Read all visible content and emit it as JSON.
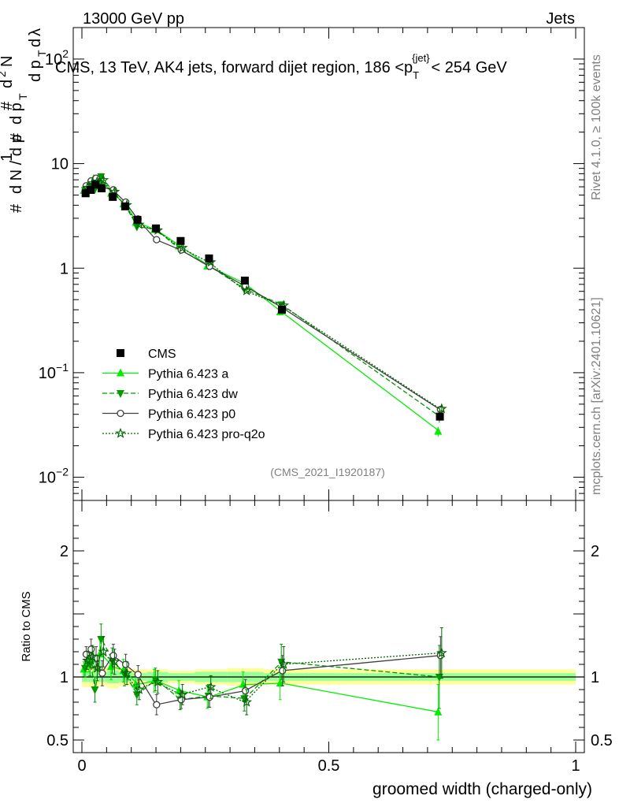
{
  "header": {
    "left": "13000 GeV pp",
    "right": "Jets",
    "title": "CMS, 13 TeV, AK4 jets, forward dijet region, 186 <p",
    "title_sup": "{jet}",
    "title_sub": "T",
    "title_end": "< 254 GeV",
    "side_top": "Rivet 4.1.0, ≥ 100k events",
    "side_bottom": "mcplots.cern.ch [arXiv:2401.10621]",
    "analysis_id": "(CMS_2021_I1920187)"
  },
  "chart_data": {
    "type": "scatter",
    "xlabel": "groomed width (charged-only)",
    "ylabel_main": "1/dN/dp_T dN/dp_T dλ",
    "ylabel_ratio": "Ratio to CMS",
    "xlim": [
      0,
      1
    ],
    "ylim_main_log": [
      0.006,
      200
    ],
    "ylim_ratio": [
      0.4,
      2.4
    ],
    "x_ticks": [
      {
        "v": 0,
        "label": "0"
      },
      {
        "v": 0.5,
        "label": "0.5"
      },
      {
        "v": 1,
        "label": "1"
      }
    ],
    "y_ticks_main": [
      {
        "v": 0.01,
        "base": "10",
        "exp": "−2"
      },
      {
        "v": 0.1,
        "base": "10",
        "exp": "−1"
      },
      {
        "v": 1,
        "base": "1",
        "exp": ""
      },
      {
        "v": 10,
        "base": "10",
        "exp": ""
      },
      {
        "v": 100,
        "base": "10",
        "exp": "2"
      }
    ],
    "y_ticks_ratio": [
      {
        "v": 0.5,
        "label": "0.5"
      },
      {
        "v": 1,
        "label": "1"
      },
      {
        "v": 2,
        "label": "2"
      }
    ],
    "x": [
      0.0075,
      0.0175,
      0.0275,
      0.04,
      0.0625,
      0.0875,
      0.1125,
      0.15,
      0.2,
      0.2575,
      0.33,
      0.405,
      0.725
    ],
    "cms": {
      "name": "CMS",
      "values": [
        5.2,
        5.6,
        6.3,
        5.8,
        4.8,
        3.9,
        2.9,
        2.4,
        1.82,
        1.24,
        0.76,
        0.4,
        0.038
      ],
      "band_inner": [
        0.04,
        0.04,
        0.04,
        0.04,
        0.05,
        0.04,
        0.03,
        0.04,
        0.03,
        0.04,
        0.04,
        0.03,
        0.03
      ],
      "band_outer": [
        0.08,
        0.08,
        0.09,
        0.07,
        0.09,
        0.07,
        0.06,
        0.06,
        0.05,
        0.06,
        0.07,
        0.06,
        0.06
      ]
    },
    "series": [
      {
        "name": "Pythia 6.423 a",
        "color": "#00ee00",
        "dash": "",
        "marker": "triangle-up",
        "ratio": [
          1.06,
          1.12,
          1.14,
          1.18,
          1.08,
          1.05,
          0.94,
          0.97,
          0.89,
          0.84,
          0.94,
          0.95,
          0.72
        ],
        "ratio_err": [
          0.06,
          0.08,
          0.1,
          0.12,
          0.1,
          0.09,
          0.08,
          0.09,
          0.08,
          0.09,
          0.1,
          0.13,
          0.22
        ]
      },
      {
        "name": "Pythia 6.423 dw",
        "color": "#009900",
        "dash": "6,3",
        "marker": "triangle-down",
        "ratio": [
          1.07,
          1.1,
          0.9,
          1.3,
          1.13,
          1.02,
          0.86,
          0.98,
          0.82,
          0.85,
          0.83,
          1.12,
          1.0
        ],
        "ratio_err": [
          0.07,
          0.09,
          0.1,
          0.12,
          0.1,
          0.09,
          0.08,
          0.09,
          0.08,
          0.09,
          0.1,
          0.14,
          0.25
        ]
      },
      {
        "name": "Pythia 6.423 p0",
        "color": "#404040",
        "dash": "",
        "marker": "circle-open",
        "ratio": [
          1.18,
          1.22,
          1.15,
          1.03,
          1.17,
          1.1,
          1.02,
          0.78,
          0.82,
          0.84,
          0.89,
          1.05,
          1.17
        ],
        "ratio_err": [
          0.06,
          0.08,
          0.09,
          0.1,
          0.09,
          0.08,
          0.07,
          0.08,
          0.07,
          0.08,
          0.09,
          0.12,
          0.15
        ]
      },
      {
        "name": "Pythia 6.423 pro-q2o",
        "color": "#006600",
        "dash": "2,2",
        "marker": "star-open",
        "ratio": [
          1.13,
          1.16,
          1.07,
          1.2,
          1.12,
          1.03,
          0.9,
          0.96,
          0.86,
          0.92,
          0.8,
          1.1,
          1.19
        ],
        "ratio_err": [
          0.07,
          0.09,
          0.1,
          0.12,
          0.1,
          0.09,
          0.08,
          0.09,
          0.08,
          0.09,
          0.1,
          0.14,
          0.2
        ]
      }
    ]
  }
}
